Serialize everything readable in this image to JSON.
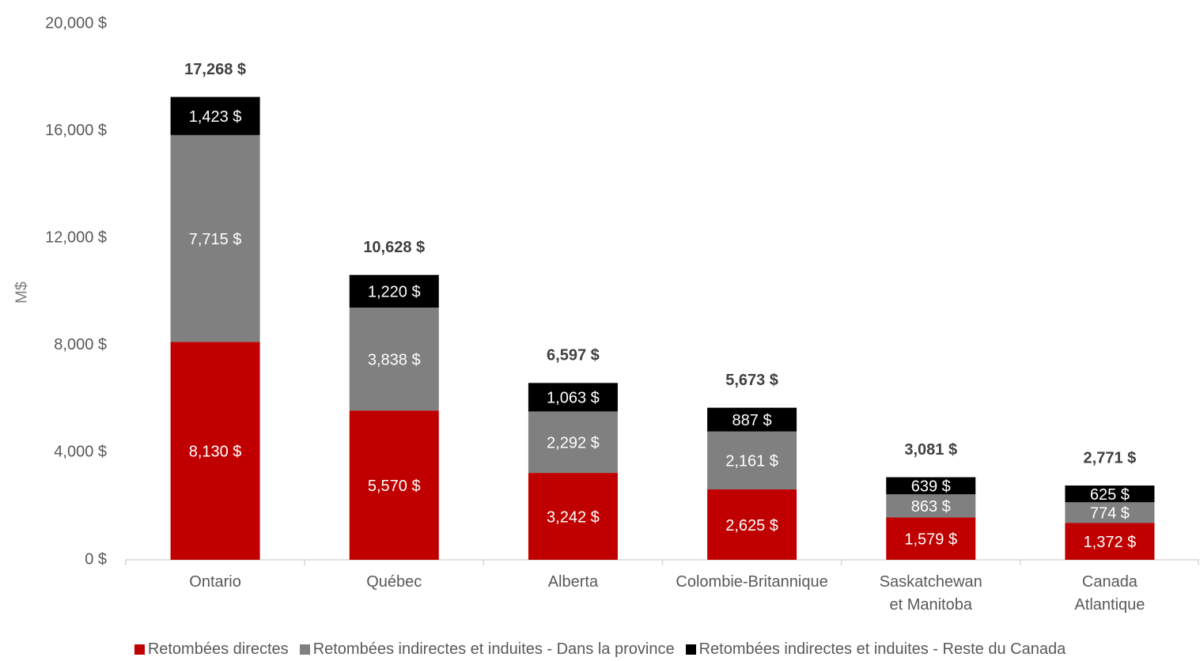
{
  "chart_data": {
    "type": "stacked_bar",
    "y_label": "M$",
    "categories": [
      "Ontario",
      "Québec",
      "Alberta",
      "Colombie-Britannique",
      "Saskatchewan\net Manitoba",
      "Canada\nAtlantique"
    ],
    "series": [
      {
        "name": "Retombées directes",
        "color": "#c00000",
        "values": [
          8130,
          5570,
          3242,
          2625,
          1579,
          1372
        ],
        "value_labels": [
          "8,130  $",
          "5,570  $",
          "3,242  $",
          "2,625  $",
          "1,579  $",
          "1,372  $"
        ]
      },
      {
        "name": "Retombées indirectes et induites - Dans la province",
        "color": "#808080",
        "values": [
          7715,
          3838,
          2292,
          2161,
          863,
          774
        ],
        "value_labels": [
          "7,715  $",
          "3,838  $",
          "2,292  $",
          "2,161  $",
          "863  $",
          "774  $"
        ]
      },
      {
        "name": "Retombées indirectes et induites - Reste du Canada",
        "color": "#000000",
        "values": [
          1423,
          1220,
          1063,
          887,
          639,
          625
        ],
        "value_labels": [
          "1,423  $",
          "1,220  $",
          "1,063  $",
          "887  $",
          "639  $",
          "625  $"
        ]
      }
    ],
    "totals": {
      "values": [
        17268,
        10628,
        6597,
        5673,
        3081,
        2771
      ],
      "value_labels": [
        "17,268  $",
        "10,628  $",
        "6,597  $",
        "5,673  $",
        "3,081  $",
        "2,771  $"
      ]
    },
    "ylim": [
      0,
      20000
    ],
    "yticks": [
      {
        "value": 0,
        "label": "0 $"
      },
      {
        "value": 4000,
        "label": "4,000 $"
      },
      {
        "value": 8000,
        "label": "8,000 $"
      },
      {
        "value": 12000,
        "label": "12,000 $"
      },
      {
        "value": 16000,
        "label": "16,000 $"
      },
      {
        "value": 20000,
        "label": "20,000 $"
      }
    ],
    "legend": "bottom"
  }
}
